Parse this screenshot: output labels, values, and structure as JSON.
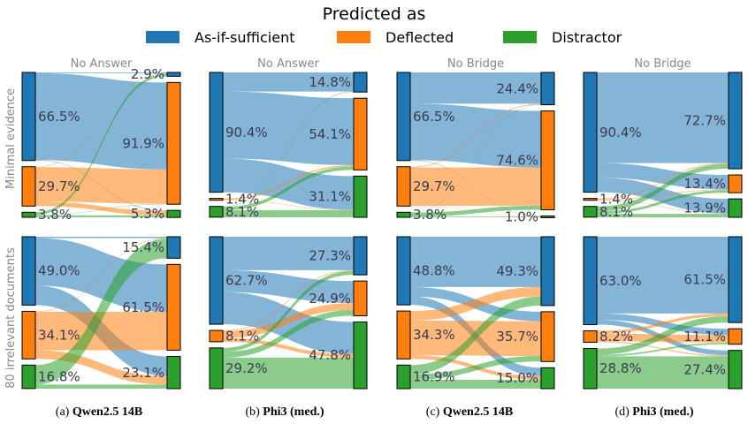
{
  "colors": {
    "As-if-sufficient": "#1f77b4",
    "Deflected": "#ff7f0e",
    "Distractor": "#2ca02c"
  },
  "chart_data": {
    "type": "sankey",
    "legend": {
      "title": "Predicted as",
      "entries": [
        "As-if-sufficient",
        "Deflected",
        "Distractor"
      ],
      "placement": "top"
    },
    "row_labels": [
      "Minimal evidence",
      "80 irrelevant documents"
    ],
    "captions": [
      {
        "prefix": "(a) ",
        "bold": "Qwen2.5 14B",
        "suffix": ""
      },
      {
        "prefix": "(b) ",
        "bold": "Phi3 (med.)",
        "suffix": ""
      },
      {
        "prefix": "(c) ",
        "bold": "Qwen2.5 14B",
        "suffix": ""
      },
      {
        "prefix": "(d) ",
        "bold": "Phi3 (med.)",
        "suffix": ""
      }
    ],
    "panels": [
      {
        "column": 0,
        "row": 0,
        "header": "No Answer",
        "left": [
          {
            "category": "As-if-sufficient",
            "value": 66.5,
            "label": "66.5%"
          },
          {
            "category": "Deflected",
            "value": 29.7,
            "label": "29.7%"
          },
          {
            "category": "Distractor",
            "value": 3.8,
            "label": "3.8%"
          }
        ],
        "right": [
          {
            "category": "As-if-sufficient",
            "value": 2.9,
            "label": "2.9%"
          },
          {
            "category": "Deflected",
            "value": 91.9,
            "label": "91.9%"
          },
          {
            "category": "Distractor",
            "value": 5.3,
            "label": "5.3%"
          }
        ],
        "flows": [
          [
            0.6,
            65.6,
            0.3
          ],
          [
            0.3,
            26.0,
            3.4
          ],
          [
            2.0,
            0.3,
            1.5
          ]
        ]
      },
      {
        "column": 1,
        "row": 0,
        "header": "No Answer",
        "left": [
          {
            "category": "As-if-sufficient",
            "value": 90.4,
            "label": "90.4%"
          },
          {
            "category": "Deflected",
            "value": 1.4,
            "label": "1.4%"
          },
          {
            "category": "Distractor",
            "value": 8.1,
            "label": "8.1%"
          }
        ],
        "right": [
          {
            "category": "As-if-sufficient",
            "value": 14.8,
            "label": "14.8%"
          },
          {
            "category": "Deflected",
            "value": 54.1,
            "label": "54.1%"
          },
          {
            "category": "Distractor",
            "value": 31.1,
            "label": "31.1%"
          }
        ],
        "flows": [
          [
            14.4,
            50.5,
            25.5
          ],
          [
            0.1,
            1.0,
            0.3
          ],
          [
            0.3,
            2.6,
            5.3
          ]
        ]
      },
      {
        "column": 2,
        "row": 0,
        "header": "No Bridge",
        "left": [
          {
            "category": "As-if-sufficient",
            "value": 66.5,
            "label": "66.5%"
          },
          {
            "category": "Deflected",
            "value": 29.7,
            "label": "29.7%"
          },
          {
            "category": "Distractor",
            "value": 3.8,
            "label": "3.8%"
          }
        ],
        "right": [
          {
            "category": "As-if-sufficient",
            "value": 24.4,
            "label": "24.4%"
          },
          {
            "category": "Deflected",
            "value": 74.6,
            "label": "74.6%"
          },
          {
            "category": "Distractor",
            "value": 1.0,
            "label": "1.0%"
          }
        ],
        "flows": [
          [
            23.6,
            42.6,
            0.3
          ],
          [
            0.6,
            28.9,
            0.2
          ],
          [
            0.2,
            3.1,
            0.5
          ]
        ]
      },
      {
        "column": 3,
        "row": 0,
        "header": "No Bridge",
        "left": [
          {
            "category": "As-if-sufficient",
            "value": 90.4,
            "label": "90.4%"
          },
          {
            "category": "Deflected",
            "value": 1.4,
            "label": "1.4%"
          },
          {
            "category": "Distractor",
            "value": 8.1,
            "label": "8.1%"
          }
        ],
        "right": [
          {
            "category": "As-if-sufficient",
            "value": 72.7,
            "label": "72.7%"
          },
          {
            "category": "Deflected",
            "value": 13.4,
            "label": "13.4%"
          },
          {
            "category": "Distractor",
            "value": 13.9,
            "label": "13.9%"
          }
        ],
        "flows": [
          [
            68.4,
            11.0,
            11.0
          ],
          [
            0.6,
            0.5,
            0.3
          ],
          [
            3.7,
            1.9,
            2.6
          ]
        ]
      },
      {
        "column": 0,
        "row": 1,
        "header": "",
        "left": [
          {
            "category": "As-if-sufficient",
            "value": 49.0,
            "label": "49.0%"
          },
          {
            "category": "Deflected",
            "value": 34.1,
            "label": "34.1%"
          },
          {
            "category": "Distractor",
            "value": 16.8,
            "label": "16.8%"
          }
        ],
        "right": [
          {
            "category": "As-if-sufficient",
            "value": 15.4,
            "label": "15.4%"
          },
          {
            "category": "Deflected",
            "value": 61.5,
            "label": "61.5%"
          },
          {
            "category": "Distractor",
            "value": 23.1,
            "label": "23.1%"
          }
        ],
        "flows": [
          [
            1.0,
            34.0,
            14.0
          ],
          [
            0.4,
            27.5,
            6.2
          ],
          [
            14.0,
            0.0,
            2.9
          ]
        ]
      },
      {
        "column": 1,
        "row": 1,
        "header": "",
        "left": [
          {
            "category": "As-if-sufficient",
            "value": 62.7,
            "label": "62.7%"
          },
          {
            "category": "Deflected",
            "value": 8.1,
            "label": "8.1%"
          },
          {
            "category": "Distractor",
            "value": 29.2,
            "label": "29.2%"
          }
        ],
        "right": [
          {
            "category": "As-if-sufficient",
            "value": 27.3,
            "label": "27.3%"
          },
          {
            "category": "Deflected",
            "value": 24.9,
            "label": "24.9%"
          },
          {
            "category": "Distractor",
            "value": 47.8,
            "label": "47.8%"
          }
        ],
        "flows": [
          [
            24.0,
            15.7,
            23.0
          ],
          [
            0.5,
            5.0,
            2.6
          ],
          [
            2.8,
            4.2,
            22.2
          ]
        ]
      },
      {
        "column": 2,
        "row": 1,
        "header": "",
        "left": [
          {
            "category": "As-if-sufficient",
            "value": 48.8,
            "label": "48.8%"
          },
          {
            "category": "Deflected",
            "value": 34.3,
            "label": "34.3%"
          },
          {
            "category": "Distractor",
            "value": 16.9,
            "label": "16.9%"
          }
        ],
        "right": [
          {
            "category": "As-if-sufficient",
            "value": 49.3,
            "label": "49.3%"
          },
          {
            "category": "Deflected",
            "value": 35.7,
            "label": "35.7%"
          },
          {
            "category": "Distractor",
            "value": 15.0,
            "label": "15.0%"
          }
        ],
        "flows": [
          [
            36.0,
            6.8,
            6.0
          ],
          [
            6.8,
            24.9,
            2.6
          ],
          [
            6.5,
            4.0,
            6.4
          ]
        ]
      },
      {
        "column": 3,
        "row": 1,
        "header": "",
        "left": [
          {
            "category": "As-if-sufficient",
            "value": 63.0,
            "label": "63.0%"
          },
          {
            "category": "Deflected",
            "value": 8.2,
            "label": "8.2%"
          },
          {
            "category": "Distractor",
            "value": 28.8,
            "label": "28.8%"
          }
        ],
        "right": [
          {
            "category": "As-if-sufficient",
            "value": 61.5,
            "label": "61.5%"
          },
          {
            "category": "Deflected",
            "value": 11.1,
            "label": "11.1%"
          },
          {
            "category": "Distractor",
            "value": 27.4,
            "label": "27.4%"
          }
        ],
        "flows": [
          [
            55.0,
            4.5,
            3.5
          ],
          [
            2.0,
            5.5,
            0.7
          ],
          [
            4.5,
            1.1,
            23.2
          ]
        ]
      }
    ]
  }
}
